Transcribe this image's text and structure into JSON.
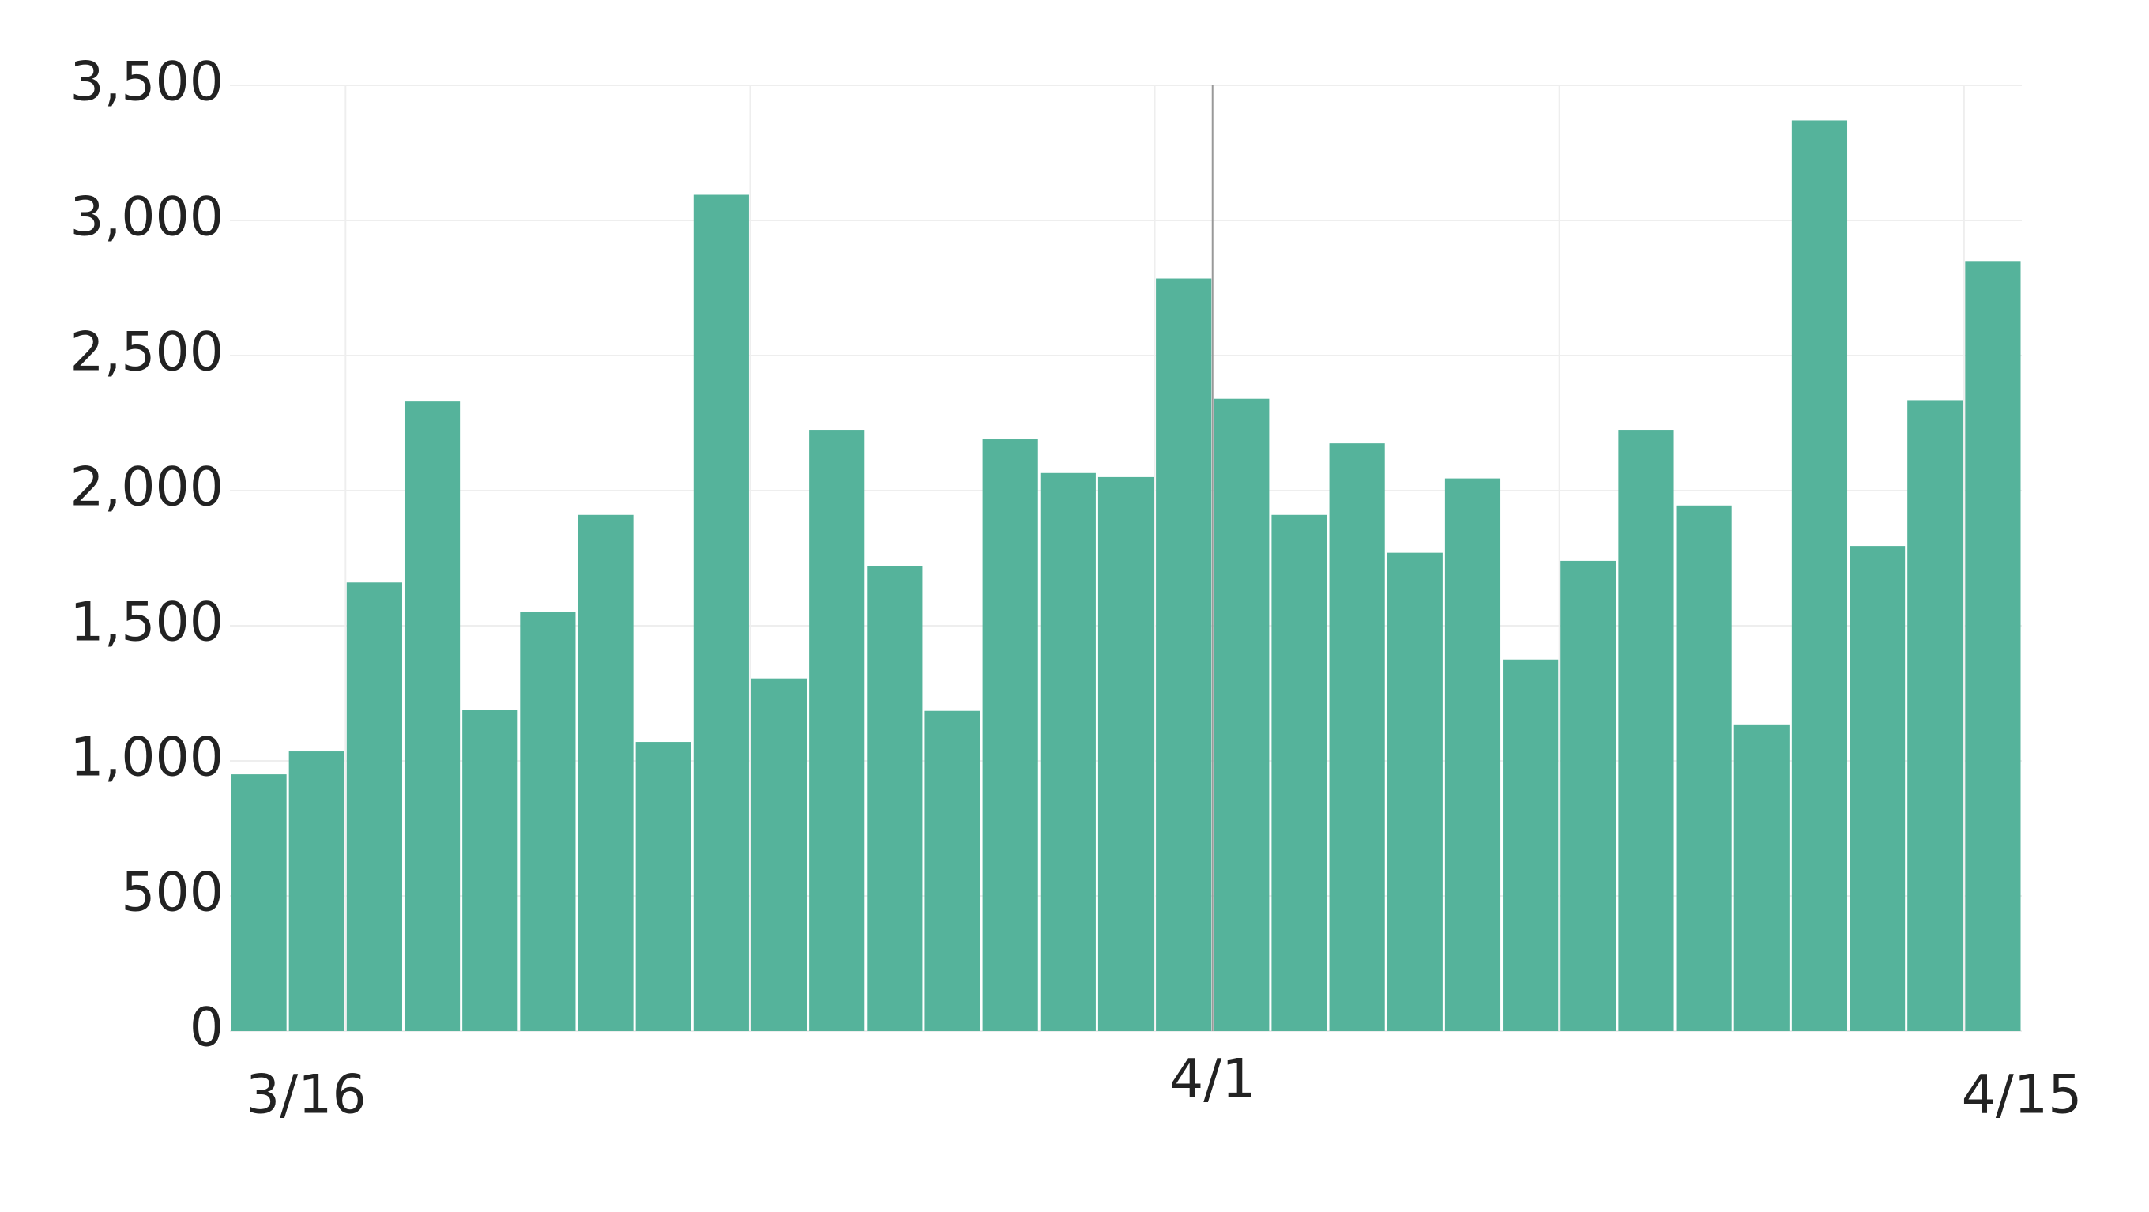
{
  "chart_data": {
    "type": "bar",
    "categories": [
      "3/16",
      null,
      null,
      null,
      null,
      null,
      null,
      null,
      null,
      null,
      null,
      null,
      null,
      null,
      null,
      null,
      "4/1",
      null,
      null,
      null,
      null,
      null,
      null,
      null,
      null,
      null,
      null,
      null,
      null,
      null,
      "4/15"
    ],
    "values": [
      950,
      1035,
      1660,
      2330,
      1190,
      1550,
      1910,
      1070,
      3095,
      1305,
      2225,
      1720,
      1185,
      2190,
      2065,
      2050,
      2785,
      2340,
      1910,
      2175,
      1770,
      2045,
      1375,
      1740,
      2225,
      1945,
      1135,
      3370,
      1795,
      2335,
      2850
    ],
    "color": "#55b39b",
    "ylim": [
      0,
      3500
    ],
    "yticks": [
      0,
      500,
      {
        "value": 1000,
        "label": "1,000"
      },
      {
        "value": 1500,
        "label": "1,500"
      },
      {
        "value": 2000,
        "label": "2,000"
      },
      {
        "value": 2500,
        "label": "2,500"
      },
      {
        "value": 3000,
        "label": "3,000"
      },
      {
        "value": 3500,
        "label": "3,500"
      }
    ],
    "grid": true
  }
}
